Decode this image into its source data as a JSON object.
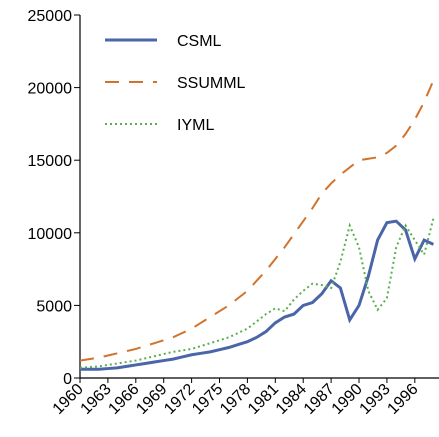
{
  "chart_data": {
    "type": "line",
    "x": [
      1960,
      1961,
      1962,
      1963,
      1964,
      1965,
      1966,
      1967,
      1968,
      1969,
      1970,
      1971,
      1972,
      1973,
      1974,
      1975,
      1976,
      1977,
      1978,
      1979,
      1980,
      1981,
      1982,
      1983,
      1984,
      1985,
      1986,
      1987,
      1988,
      1989,
      1990,
      1991,
      1992,
      1993,
      1994,
      1995,
      1996,
      1997,
      1998
    ],
    "series": [
      {
        "name": "CSML",
        "color": "#4a65a8",
        "dash": "solid",
        "values": [
          600,
          600,
          600,
          650,
          700,
          800,
          900,
          1000,
          1100,
          1200,
          1300,
          1450,
          1600,
          1700,
          1800,
          1950,
          2100,
          2300,
          2500,
          2800,
          3200,
          3800,
          4200,
          4400,
          5000,
          5200,
          5800,
          6700,
          6200,
          4000,
          5000,
          7000,
          9500,
          10700,
          10800,
          10200,
          8200,
          9500,
          9200
        ]
      },
      {
        "name": "SSUMML",
        "color": "#d0732d",
        "dash": "dashed",
        "values": [
          1200,
          1300,
          1400,
          1550,
          1700,
          1850,
          2000,
          2200,
          2400,
          2600,
          2800,
          3100,
          3400,
          3800,
          4200,
          4600,
          5000,
          5500,
          6000,
          6700,
          7400,
          8200,
          9000,
          9900,
          10800,
          11700,
          12700,
          13400,
          14000,
          14500,
          15000,
          15100,
          15200,
          15500,
          16000,
          16800,
          17800,
          19000,
          20500
        ]
      },
      {
        "name": "IYML",
        "color": "#5aae4e",
        "dash": "dotted",
        "values": [
          700,
          750,
          800,
          900,
          1000,
          1100,
          1200,
          1350,
          1500,
          1650,
          1800,
          1900,
          2000,
          2200,
          2400,
          2600,
          2800,
          3100,
          3400,
          3900,
          4400,
          4800,
          4600,
          5400,
          6000,
          6500,
          6400,
          6200,
          8000,
          10500,
          9000,
          6000,
          4700,
          5500,
          9000,
          10500,
          9500,
          8500,
          11000
        ]
      }
    ],
    "xlim": [
      1960,
      1998.6
    ],
    "xticks": [
      1960,
      1963,
      1966,
      1969,
      1972,
      1975,
      1978,
      1981,
      1984,
      1987,
      1990,
      1993,
      1996
    ],
    "ylim": [
      0,
      25000
    ],
    "yticks": [
      0,
      5000,
      10000,
      15000,
      20000,
      25000
    ],
    "legend": "upper-left"
  }
}
